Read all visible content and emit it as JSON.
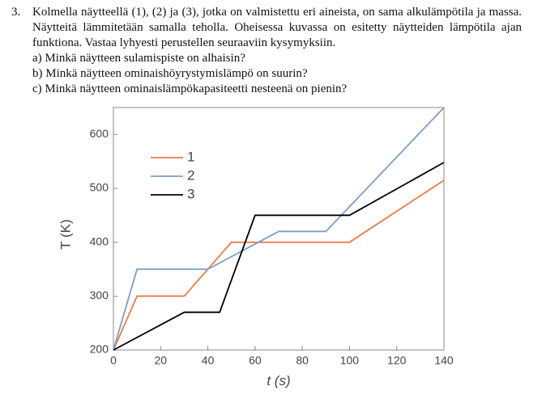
{
  "question": {
    "number": "3.",
    "text": "Kolmella näytteellä (1), (2) ja (3), jotka on valmistettu eri aineista, on sama alkulämpötila ja massa. Näytteitä lämmitetään samalla teholla. Oheisessa kuvassa on esitetty näytteiden lämpötila ajan funktiona. Vastaa lyhyesti perustellen seuraaviin kysymyksiin.",
    "items": [
      {
        "label": "a)",
        "text": "Minkä näytteen sulamispiste on alhaisin?"
      },
      {
        "label": "b)",
        "text": "Minkä näytteen ominaishöyrystymislämpö on suurin?"
      },
      {
        "label": "c)",
        "text": "Minkä näytteen ominaislämpökapasiteetti nesteenä on pienin?"
      }
    ]
  },
  "chart_data": {
    "type": "line",
    "xlabel": "t (s)",
    "ylabel": "T (K)",
    "xlim": [
      0,
      140
    ],
    "ylim": [
      200,
      650
    ],
    "xticks": [
      0,
      20,
      40,
      60,
      80,
      100,
      120,
      140
    ],
    "yticks": [
      200,
      300,
      400,
      500,
      600
    ],
    "legend": "upper left",
    "series": [
      {
        "name": "1",
        "color": "#f07a45",
        "x": [
          0,
          10,
          30,
          50,
          100,
          140
        ],
        "values": [
          200,
          300,
          300,
          400,
          400,
          515
        ]
      },
      {
        "name": "2",
        "color": "#7b9dcc",
        "x": [
          0,
          10,
          40,
          70,
          90,
          140
        ],
        "values": [
          200,
          350,
          350,
          420,
          420,
          650
        ]
      },
      {
        "name": "3",
        "color": "#000000",
        "x": [
          0,
          30,
          45,
          60,
          100,
          140
        ],
        "values": [
          200,
          270,
          270,
          450,
          450,
          548
        ]
      }
    ]
  }
}
